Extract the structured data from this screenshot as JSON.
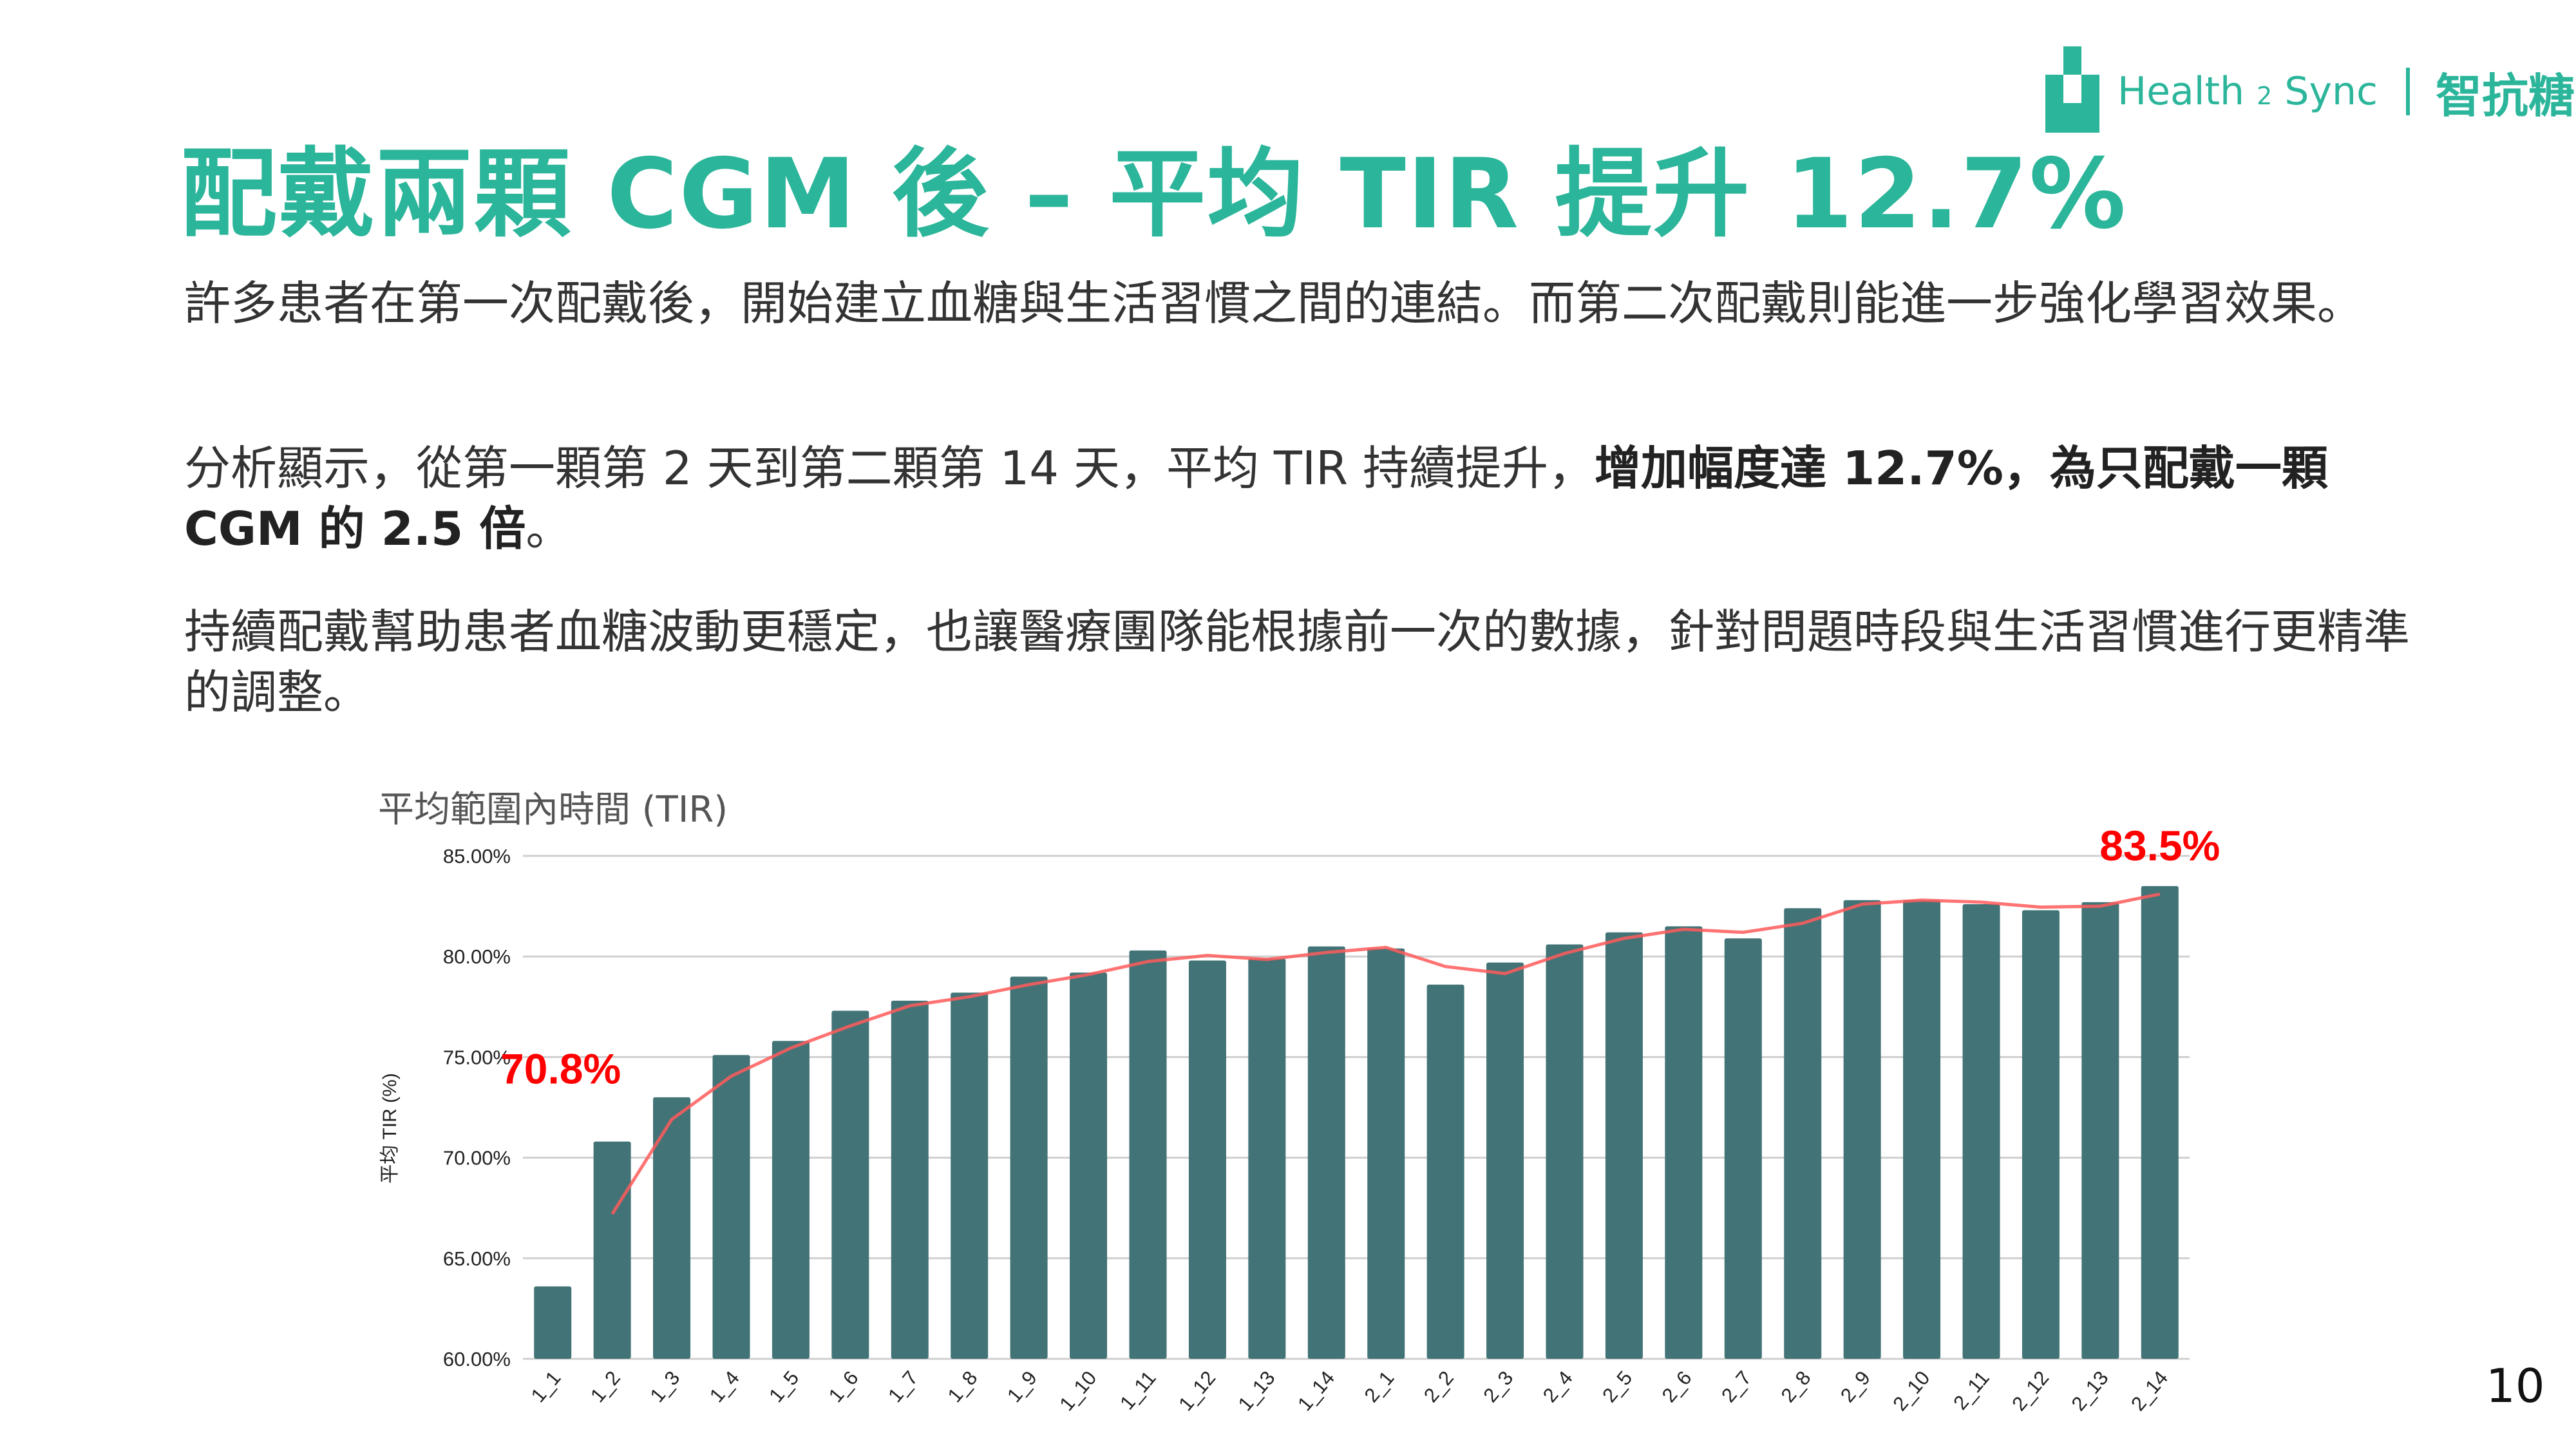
{
  "title": "配戴兩顆 CGM 後 – 平均 TIR 提升 12.7%",
  "logo": {
    "brand": "Health",
    "brand_num": "2",
    "brand_end": "Sync",
    "product": "智抗糖",
    "color": "#2bb59a"
  },
  "paragraphs": {
    "p1": "許多患者在第一次配戴後，開始建立血糖與生活習慣之間的連結。而第二次配戴則能進一步強化學習效果。",
    "p2_normal": "分析顯示，從第一顆第 2 天到第二顆第 14 天，平均 TIR 持續提升，",
    "p2_bold": "增加幅度達 12.7%，為只配戴一顆 CGM 的 2.5 倍",
    "p2_end": "。",
    "p3": "持續配戴幫助患者血糖波動更穩定，也讓醫療團隊能根據前一次的數據，針對問題時段與生活習慣進行更精準的調整。"
  },
  "page_number": "10",
  "chart_data": {
    "type": "bar",
    "title": "平均範圍內時間 (TIR)",
    "xlabel": "",
    "ylabel": "平均 TIR (%)",
    "ylim": [
      60,
      85
    ],
    "yticks": [
      "60.00%",
      "65.00%",
      "70.00%",
      "75.00%",
      "80.00%",
      "85.00%"
    ],
    "grid": true,
    "bar_color": "#427377",
    "trend_color": "#ff5a5a",
    "trendline": "2-period moving average",
    "categories": [
      "1_1",
      "1_2",
      "1_3",
      "1_4",
      "1_5",
      "1_6",
      "1_7",
      "1_8",
      "1_9",
      "1_10",
      "1_11",
      "1_12",
      "1_13",
      "1_14",
      "2_1",
      "2_2",
      "2_3",
      "2_4",
      "2_5",
      "2_6",
      "2_7",
      "2_8",
      "2_9",
      "2_10",
      "2_11",
      "2_12",
      "2_13",
      "2_14"
    ],
    "values": [
      63.6,
      70.8,
      73.0,
      75.1,
      75.8,
      77.3,
      77.8,
      78.2,
      79.0,
      79.2,
      80.3,
      79.8,
      79.9,
      80.5,
      80.4,
      78.6,
      79.7,
      80.6,
      81.2,
      81.5,
      80.9,
      82.4,
      82.8,
      82.8,
      82.6,
      82.3,
      82.7,
      83.5
    ],
    "annotations": [
      {
        "category": "1_2",
        "text": "70.8%",
        "color": "#ff0000"
      },
      {
        "category": "2_14",
        "text": "83.5%",
        "color": "#ff0000"
      }
    ]
  }
}
